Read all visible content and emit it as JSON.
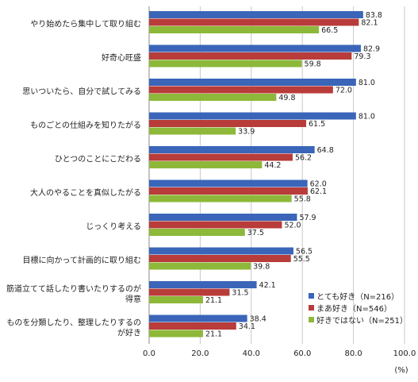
{
  "colors": {
    "series": [
      "#3a65b8",
      "#b83c3a",
      "#8db83a"
    ],
    "grid": "#c8c8c8",
    "axis": "#888888"
  },
  "chart_data": {
    "type": "bar",
    "orientation": "horizontal",
    "title": "",
    "xlabel": "",
    "ylabel": "",
    "unit": "(%)",
    "xlim": [
      0,
      100
    ],
    "xticks": [
      0,
      20,
      40,
      60,
      80,
      100
    ],
    "xtick_labels": [
      "0.0",
      "20.0",
      "40.0",
      "60.0",
      "80.0",
      "100.0"
    ],
    "grid": true,
    "legend_position": "bottom-right",
    "categories": [
      [
        "やり始めたら集中して取り組む"
      ],
      [
        "好奇心旺盛"
      ],
      [
        "思いついたら、自分で試してみる"
      ],
      [
        "ものごとの仕組みを知りたがる"
      ],
      [
        "ひとつのことにこだわる"
      ],
      [
        "大人のやることを真似したがる"
      ],
      [
        "じっくり考える"
      ],
      [
        "目標に向かって計画的に取り組む"
      ],
      [
        "筋道立てて話したり書いたりするのが",
        "得意"
      ],
      [
        "ものを分類したり、整理したりするの",
        "が好き"
      ]
    ],
    "series": [
      {
        "name": "とても好き（N=216）",
        "values": [
          83.8,
          82.9,
          81.0,
          81.0,
          64.8,
          62.0,
          57.9,
          56.5,
          42.1,
          38.4
        ],
        "labels": [
          "83.8",
          "82.9",
          "81.0",
          "81.0",
          "64.8",
          "62.0",
          "57.9",
          "56.5",
          "42.1",
          "38.4"
        ]
      },
      {
        "name": "まあ好き（N=546）",
        "values": [
          82.1,
          79.3,
          72.0,
          61.5,
          56.2,
          62.1,
          52.0,
          55.5,
          31.5,
          34.1
        ],
        "labels": [
          "82.1",
          "79.3",
          "72.0",
          "61.5",
          "56.2",
          "62.1",
          "52.0",
          "55.5",
          "31.5",
          "34.1"
        ]
      },
      {
        "name": "好きではない（N=251）",
        "values": [
          66.5,
          59.8,
          49.8,
          33.9,
          44.2,
          55.8,
          37.5,
          39.8,
          21.1,
          21.1
        ],
        "labels": [
          "66.5",
          "59.8",
          "49.8",
          "33.9",
          "44.2",
          "55.8",
          "37.5",
          "39.8",
          "21.1",
          "21.1"
        ]
      }
    ]
  }
}
